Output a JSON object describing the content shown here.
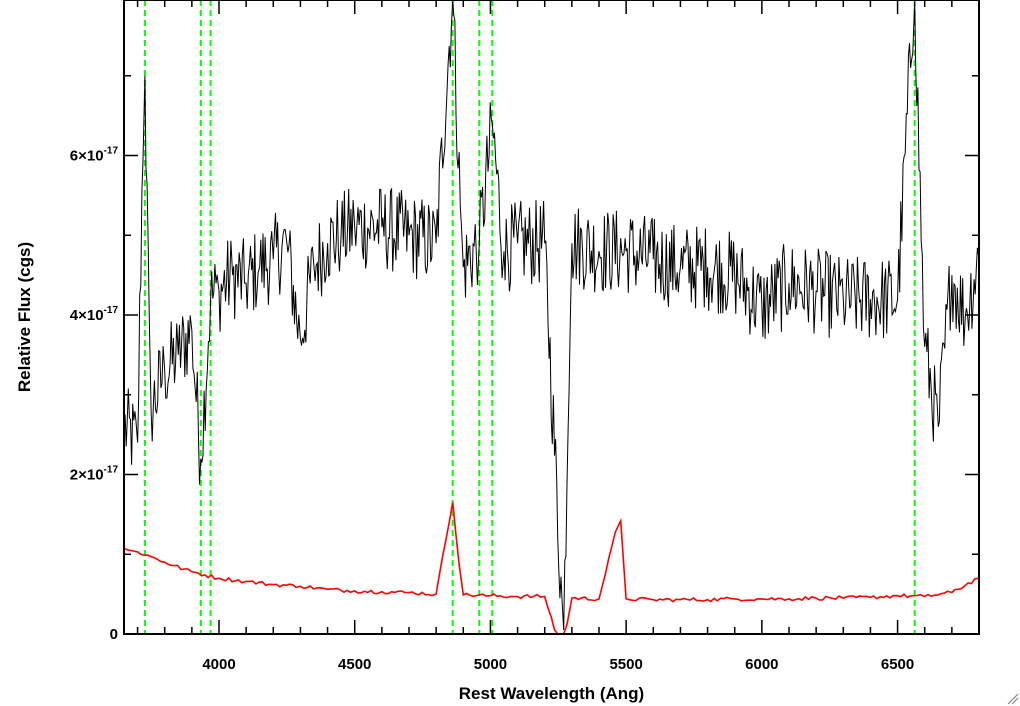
{
  "chart_data": {
    "type": "line",
    "title": "",
    "xlabel": "Rest Wavelength (Ang)",
    "ylabel": "Relative Flux (cgs)",
    "xlim": [
      3650,
      6800
    ],
    "ylim": [
      0,
      7.95e-17
    ],
    "x_ticks": [
      {
        "value": 4000,
        "label": "4000"
      },
      {
        "value": 4500,
        "label": "4500"
      },
      {
        "value": 5000,
        "label": "5000"
      },
      {
        "value": 5500,
        "label": "5500"
      },
      {
        "value": 6000,
        "label": "6000"
      },
      {
        "value": 6500,
        "label": "6500"
      }
    ],
    "y_ticks": [
      {
        "value": 0,
        "mantissa": "0",
        "exponent": ""
      },
      {
        "value": 2e-17,
        "mantissa": "2×10",
        "exponent": "-17"
      },
      {
        "value": 4e-17,
        "mantissa": "4×10",
        "exponent": "-17"
      },
      {
        "value": 6e-17,
        "mantissa": "6×10",
        "exponent": "-17"
      }
    ],
    "grid": false,
    "legend": "none",
    "colors": {
      "spectrum": "#000000",
      "error": "#ff0000",
      "lines": "#00ff00",
      "axes": "#000000"
    },
    "series": [
      {
        "role": "spectrum",
        "color": "#000000",
        "x": [
          3650,
          3700,
          3727,
          3750,
          3800,
          3850,
          3900,
          3933,
          3969,
          4000,
          4050,
          4100,
          4150,
          4200,
          4250,
          4300,
          4350,
          4400,
          4450,
          4500,
          4600,
          4700,
          4800,
          4861,
          4900,
          4959,
          5007,
          5050,
          5100,
          5200,
          5270,
          5300,
          5400,
          5500,
          5600,
          5700,
          5800,
          5900,
          6000,
          6100,
          6200,
          6300,
          6400,
          6500,
          6563,
          6600,
          6650,
          6700,
          6750,
          6800
        ],
        "y": [
          2.6e-17,
          2.4e-17,
          7e-17,
          2.8e-17,
          3.3e-17,
          3.5e-17,
          3.8e-17,
          2.2e-17,
          4.2e-17,
          4.3e-17,
          4.5e-17,
          4.4e-17,
          4.6e-17,
          4.7e-17,
          4.9e-17,
          3.7e-17,
          4.6e-17,
          4.9e-17,
          5e-17,
          5.1e-17,
          5.1e-17,
          5e-17,
          4.9e-17,
          8e-17,
          4.6e-17,
          4.9e-17,
          6.4e-17,
          4.8e-17,
          4.9e-17,
          4.9e-17,
          5e-19,
          4.9e-17,
          4.8e-17,
          4.8e-17,
          4.7e-17,
          4.6e-17,
          4.6e-17,
          4.5e-17,
          4.1e-17,
          4.4e-17,
          4.3e-17,
          4.2e-17,
          4.2e-17,
          4.2e-17,
          8e-17,
          3.6e-17,
          2.6e-17,
          4.5e-17,
          4e-17,
          4.7e-17
        ]
      },
      {
        "role": "error",
        "color": "#ff0000",
        "x": [
          3650,
          3670,
          3700,
          3750,
          3800,
          3900,
          4000,
          4100,
          4200,
          4300,
          4400,
          4500,
          4600,
          4700,
          4800,
          4861,
          4900,
          5000,
          5100,
          5200,
          5270,
          5300,
          5400,
          5480,
          5500,
          5600,
          5700,
          5800,
          5900,
          6000,
          6100,
          6200,
          6300,
          6400,
          6500,
          6600,
          6700,
          6800
        ],
        "y": [
          1.07e-17,
          1.05e-17,
          1.03e-17,
          9.7e-18,
          9e-18,
          7.8e-18,
          7e-18,
          6.6e-18,
          6.2e-18,
          6e-18,
          5.6e-18,
          5.4e-18,
          5.3e-18,
          5.2e-18,
          5e-18,
          1.65e-17,
          4.9e-18,
          4.8e-18,
          4.7e-18,
          4.7e-18,
          -2e-18,
          4.5e-18,
          4.4e-18,
          1.42e-17,
          4.4e-18,
          4.3e-18,
          4.3e-18,
          4.3e-18,
          4.4e-18,
          4.4e-18,
          4.4e-18,
          4.5e-18,
          4.5e-18,
          4.6e-18,
          4.8e-18,
          4.7e-18,
          5.2e-18,
          7e-18
        ]
      }
    ],
    "vertical_lines": [
      3727,
      3933,
      3969,
      4861,
      4959,
      5007,
      6563
    ]
  }
}
